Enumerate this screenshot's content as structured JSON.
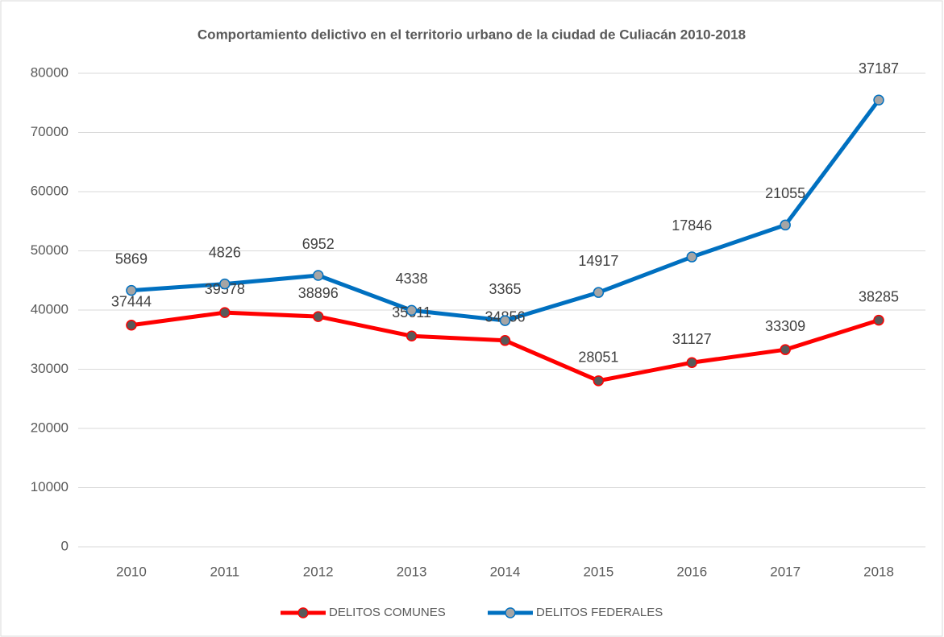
{
  "chart_data": {
    "type": "line",
    "stacked": true,
    "title": "Comportamiento delictivo en el territorio urbano de la ciudad de Culiacán 2010-2018",
    "categories": [
      "2010",
      "2011",
      "2012",
      "2013",
      "2014",
      "2015",
      "2016",
      "2017",
      "2018"
    ],
    "series": [
      {
        "name": "DELITOS COMUNES",
        "color": "#ff0000",
        "marker_color": "#595959",
        "values": [
          37444,
          39578,
          38896,
          35611,
          34856,
          28051,
          31127,
          33309,
          38285
        ]
      },
      {
        "name": "DELITOS FEDERALES",
        "color": "#0070c0",
        "marker_color": "#a5a5a5",
        "values": [
          5869,
          4826,
          6952,
          4338,
          3365,
          14917,
          17846,
          21055,
          37187
        ]
      }
    ],
    "ylim": [
      0,
      80000
    ],
    "yticks": [
      0,
      10000,
      20000,
      30000,
      40000,
      50000,
      60000,
      70000,
      80000
    ],
    "grid": true,
    "legend": "bottom"
  }
}
